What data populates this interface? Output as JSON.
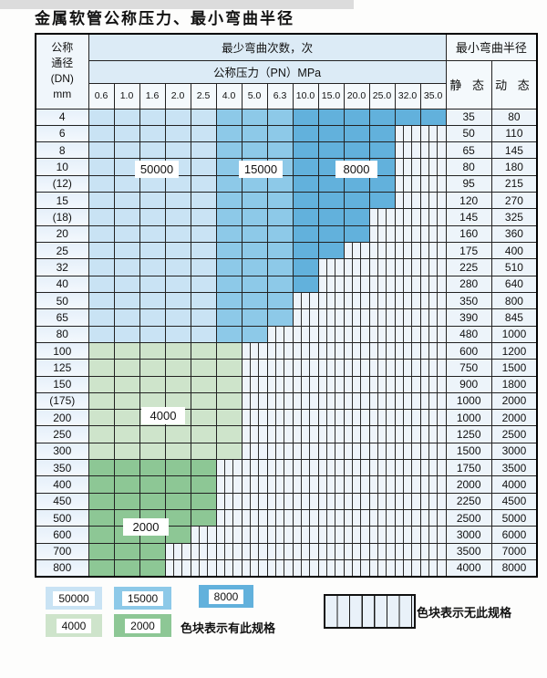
{
  "title": "金属软管公称压力、最小弯曲半径",
  "table": {
    "dn_header": [
      "公称",
      "通径",
      "(DN)",
      "mm"
    ],
    "bend_cycles_header": "最少弯曲次数，次",
    "pressure_header": "公称压力（PN）MPa",
    "pressure_columns": [
      "0.6",
      "1.0",
      "1.6",
      "2.0",
      "2.5",
      "4.0",
      "5.0",
      "6.3",
      "10.0",
      "15.0",
      "20.0",
      "25.0",
      "32.0",
      "35.0"
    ],
    "radius_header": "最小弯曲半径",
    "static_header": "静 态",
    "dynamic_header": "动 态",
    "rows": [
      {
        "dn": "4",
        "colored": 14,
        "shade": "blue",
        "static": "35",
        "dynamic": "80"
      },
      {
        "dn": "6",
        "colored": 12,
        "shade": "blue",
        "static": "50",
        "dynamic": "110"
      },
      {
        "dn": "8",
        "colored": 12,
        "shade": "blue",
        "static": "65",
        "dynamic": "145"
      },
      {
        "dn": "10",
        "colored": 12,
        "shade": "blue",
        "static": "80",
        "dynamic": "180"
      },
      {
        "dn": "(12)",
        "colored": 12,
        "shade": "blue",
        "static": "95",
        "dynamic": "215"
      },
      {
        "dn": "15",
        "colored": 12,
        "shade": "blue",
        "static": "120",
        "dynamic": "270"
      },
      {
        "dn": "(18)",
        "colored": 11,
        "shade": "blue",
        "static": "145",
        "dynamic": "325"
      },
      {
        "dn": "20",
        "colored": 11,
        "shade": "blue",
        "static": "160",
        "dynamic": "360"
      },
      {
        "dn": "25",
        "colored": 10,
        "shade": "blue",
        "static": "175",
        "dynamic": "400"
      },
      {
        "dn": "32",
        "colored": 9,
        "shade": "blue",
        "static": "225",
        "dynamic": "510"
      },
      {
        "dn": "40",
        "colored": 9,
        "shade": "blue",
        "static": "280",
        "dynamic": "640"
      },
      {
        "dn": "50",
        "colored": 8,
        "shade": "blue",
        "static": "350",
        "dynamic": "800"
      },
      {
        "dn": "65",
        "colored": 8,
        "shade": "blue",
        "static": "390",
        "dynamic": "845"
      },
      {
        "dn": "80",
        "colored": 7,
        "shade": "blue",
        "static": "480",
        "dynamic": "1000"
      },
      {
        "dn": "100",
        "colored": 6,
        "shade": "green4000",
        "static": "600",
        "dynamic": "1200"
      },
      {
        "dn": "125",
        "colored": 6,
        "shade": "green4000",
        "static": "750",
        "dynamic": "1500"
      },
      {
        "dn": "150",
        "colored": 6,
        "shade": "green4000",
        "static": "900",
        "dynamic": "1800"
      },
      {
        "dn": "(175)",
        "colored": 6,
        "shade": "green4000",
        "static": "1000",
        "dynamic": "2000"
      },
      {
        "dn": "200",
        "colored": 6,
        "shade": "green4000",
        "static": "1000",
        "dynamic": "2000"
      },
      {
        "dn": "250",
        "colored": 6,
        "shade": "green4000",
        "static": "1250",
        "dynamic": "2500"
      },
      {
        "dn": "300",
        "colored": 6,
        "shade": "green4000",
        "static": "1500",
        "dynamic": "3000"
      },
      {
        "dn": "350",
        "colored": 5,
        "shade": "green2000",
        "static": "1750",
        "dynamic": "3500"
      },
      {
        "dn": "400",
        "colored": 5,
        "shade": "green2000",
        "static": "2000",
        "dynamic": "4000"
      },
      {
        "dn": "450",
        "colored": 5,
        "shade": "green2000",
        "static": "2250",
        "dynamic": "4500"
      },
      {
        "dn": "500",
        "colored": 5,
        "shade": "green2000",
        "static": "2500",
        "dynamic": "5000"
      },
      {
        "dn": "600",
        "colored": 4,
        "shade": "green2000",
        "static": "3000",
        "dynamic": "6000"
      },
      {
        "dn": "700",
        "colored": 3,
        "shade": "green2000",
        "static": "3500",
        "dynamic": "7000"
      },
      {
        "dn": "800",
        "colored": 3,
        "shade": "green2000",
        "static": "4000",
        "dynamic": "8000"
      }
    ],
    "overlay_labels": [
      {
        "value": "50000"
      },
      {
        "value": "15000"
      },
      {
        "value": "8000"
      },
      {
        "value": "4000"
      },
      {
        "value": "2000"
      }
    ]
  },
  "colors": {
    "c50000": "#c9e3f4",
    "c15000": "#8dc9e8",
    "c8000": "#62b1dc",
    "c4000": "#cee4cb",
    "c2000": "#8dc795",
    "no_spec_bg": "#eef4fa",
    "grid": "#222222"
  },
  "legend": {
    "items": [
      {
        "value": "50000",
        "color_key": "c50000"
      },
      {
        "value": "15000",
        "color_key": "c15000"
      },
      {
        "value": "8000",
        "color_key": "c8000"
      },
      {
        "value": "4000",
        "color_key": "c4000"
      },
      {
        "value": "2000",
        "color_key": "c2000"
      }
    ],
    "has_spec_text": "色块表示有此规格",
    "no_spec_text": "色块表示无此规格"
  }
}
